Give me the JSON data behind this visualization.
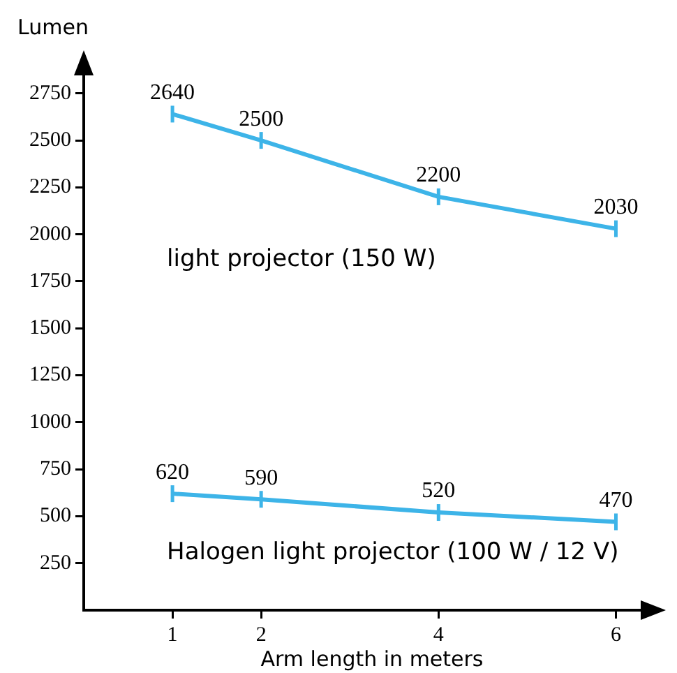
{
  "chart_data": {
    "type": "line",
    "xlabel": "Arm length in meters",
    "ylabel": "Lumen",
    "xlim": [
      0,
      6.5
    ],
    "xticks": [
      1,
      2,
      4,
      6
    ],
    "ylim": [
      0,
      2950
    ],
    "yticks": [
      250,
      500,
      750,
      1000,
      1250,
      1500,
      1750,
      2000,
      2250,
      2500,
      2750
    ],
    "x": [
      1,
      2,
      4,
      6
    ],
    "data_labels": true,
    "grid": false,
    "legend": false,
    "series": [
      {
        "name": "light projector (150 W)",
        "color": "#3db4e8",
        "values": [
          2640,
          2500,
          2200,
          2030
        ]
      },
      {
        "name": "Halogen light projector (100 W / 12 V)",
        "color": "#3db4e8",
        "values": [
          620,
          590,
          520,
          470
        ]
      }
    ]
  }
}
